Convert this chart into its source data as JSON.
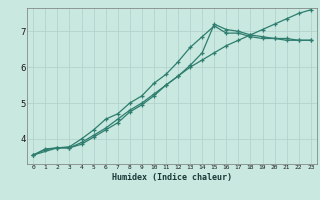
{
  "xlabel": "Humidex (Indice chaleur)",
  "bg_color": "#c8e8e0",
  "line_color": "#2e7d6e",
  "grid_color": "#b0cfc8",
  "xlim": [
    -0.5,
    23.5
  ],
  "ylim": [
    3.3,
    7.65
  ],
  "xticks": [
    0,
    1,
    2,
    3,
    4,
    5,
    6,
    7,
    8,
    9,
    10,
    11,
    12,
    13,
    14,
    15,
    16,
    17,
    18,
    19,
    20,
    21,
    22,
    23
  ],
  "yticks": [
    4,
    5,
    6,
    7
  ],
  "line1_x": [
    0,
    1,
    2,
    3,
    4,
    5,
    6,
    7,
    8,
    9,
    10,
    11,
    12,
    13,
    14,
    15,
    16,
    17,
    18,
    19,
    20,
    21,
    22,
    23
  ],
  "line1_y": [
    3.55,
    3.7,
    3.75,
    3.75,
    3.9,
    4.1,
    4.3,
    4.55,
    4.8,
    5.0,
    5.25,
    5.5,
    5.75,
    6.0,
    6.2,
    6.4,
    6.6,
    6.75,
    6.9,
    7.05,
    7.2,
    7.35,
    7.5,
    7.6
  ],
  "line2_x": [
    0,
    1,
    2,
    3,
    4,
    5,
    6,
    7,
    8,
    9,
    10,
    11,
    12,
    13,
    14,
    15,
    16,
    17,
    18,
    19,
    20,
    21,
    22,
    23
  ],
  "line2_y": [
    3.55,
    3.72,
    3.75,
    3.78,
    4.0,
    4.25,
    4.55,
    4.7,
    5.0,
    5.2,
    5.55,
    5.8,
    6.15,
    6.55,
    6.85,
    7.15,
    6.95,
    6.95,
    6.85,
    6.8,
    6.8,
    6.75,
    6.75,
    6.75
  ],
  "line3_x": [
    0,
    2,
    3,
    4,
    5,
    6,
    7,
    8,
    9,
    10,
    11,
    12,
    13,
    14,
    15,
    16,
    17,
    18,
    19,
    20,
    21,
    22,
    23
  ],
  "line3_y": [
    3.55,
    3.75,
    3.75,
    3.85,
    4.05,
    4.25,
    4.45,
    4.75,
    4.95,
    5.2,
    5.5,
    5.75,
    6.05,
    6.4,
    7.2,
    7.05,
    7.0,
    6.9,
    6.85,
    6.8,
    6.8,
    6.75,
    6.75
  ]
}
